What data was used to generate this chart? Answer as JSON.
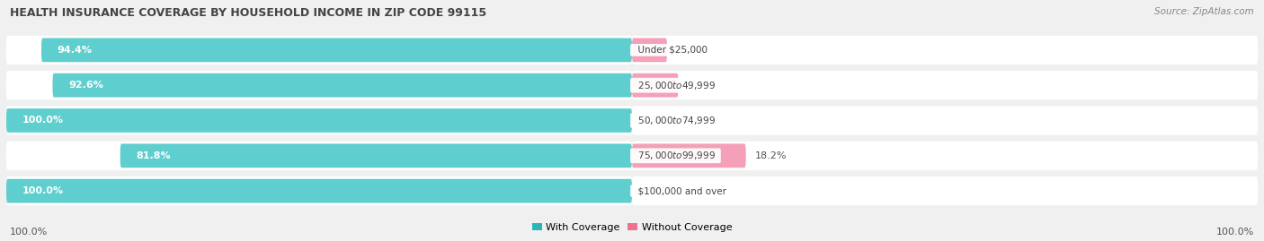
{
  "title": "HEALTH INSURANCE COVERAGE BY HOUSEHOLD INCOME IN ZIP CODE 99115",
  "source": "Source: ZipAtlas.com",
  "categories": [
    "Under $25,000",
    "$25,000 to $49,999",
    "$50,000 to $74,999",
    "$75,000 to $99,999",
    "$100,000 and over"
  ],
  "with_coverage": [
    94.4,
    92.6,
    100.0,
    81.8,
    100.0
  ],
  "without_coverage": [
    5.6,
    7.4,
    0.0,
    18.2,
    0.0
  ],
  "color_with": "#2cb5b5",
  "color_without": "#f07090",
  "color_with_light": "#5ecece",
  "color_without_light": "#f4a0b8",
  "bg_color": "#f0f0f0",
  "bar_bg": "#e0e0e0",
  "row_bg": "#e8e8e8",
  "bar_height": 0.68,
  "legend_with": "With Coverage",
  "legend_without": "Without Coverage",
  "x_left_label": "100.0%",
  "x_right_label": "100.0%",
  "title_fontsize": 9.0,
  "source_fontsize": 7.5,
  "label_fontsize": 8.0,
  "cat_fontsize": 7.5
}
